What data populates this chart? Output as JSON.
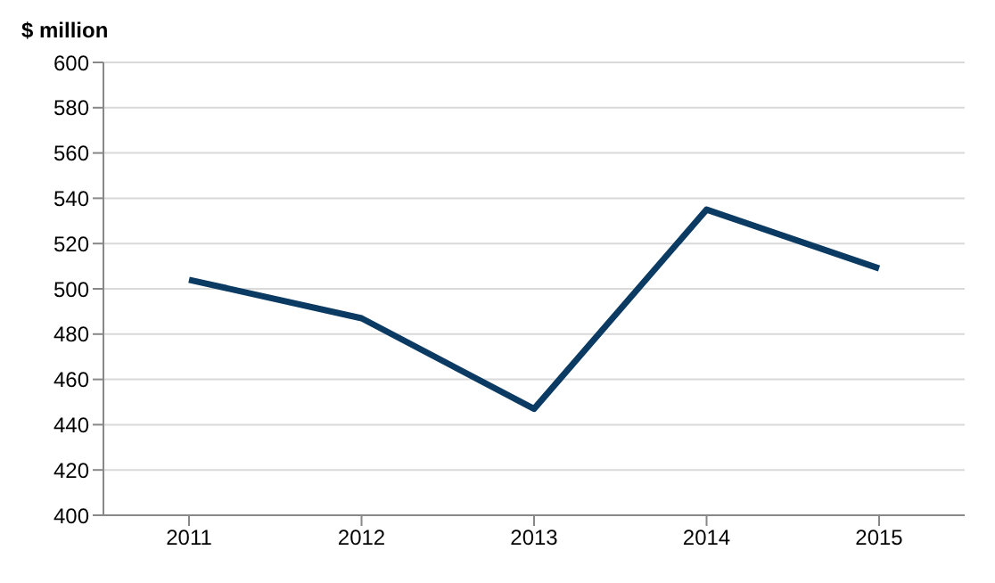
{
  "chart_data": {
    "type": "line",
    "ylabel": "$ million",
    "categories": [
      "2011",
      "2012",
      "2013",
      "2014",
      "2015"
    ],
    "series": [
      {
        "color": "#0b3a63",
        "values": [
          504,
          487,
          447,
          535,
          509
        ]
      }
    ],
    "ylim": [
      400,
      600
    ],
    "yticks": [
      400,
      420,
      440,
      460,
      480,
      500,
      520,
      540,
      560,
      580,
      600
    ],
    "grid": "y",
    "marker": "none",
    "line_style": "solid"
  }
}
